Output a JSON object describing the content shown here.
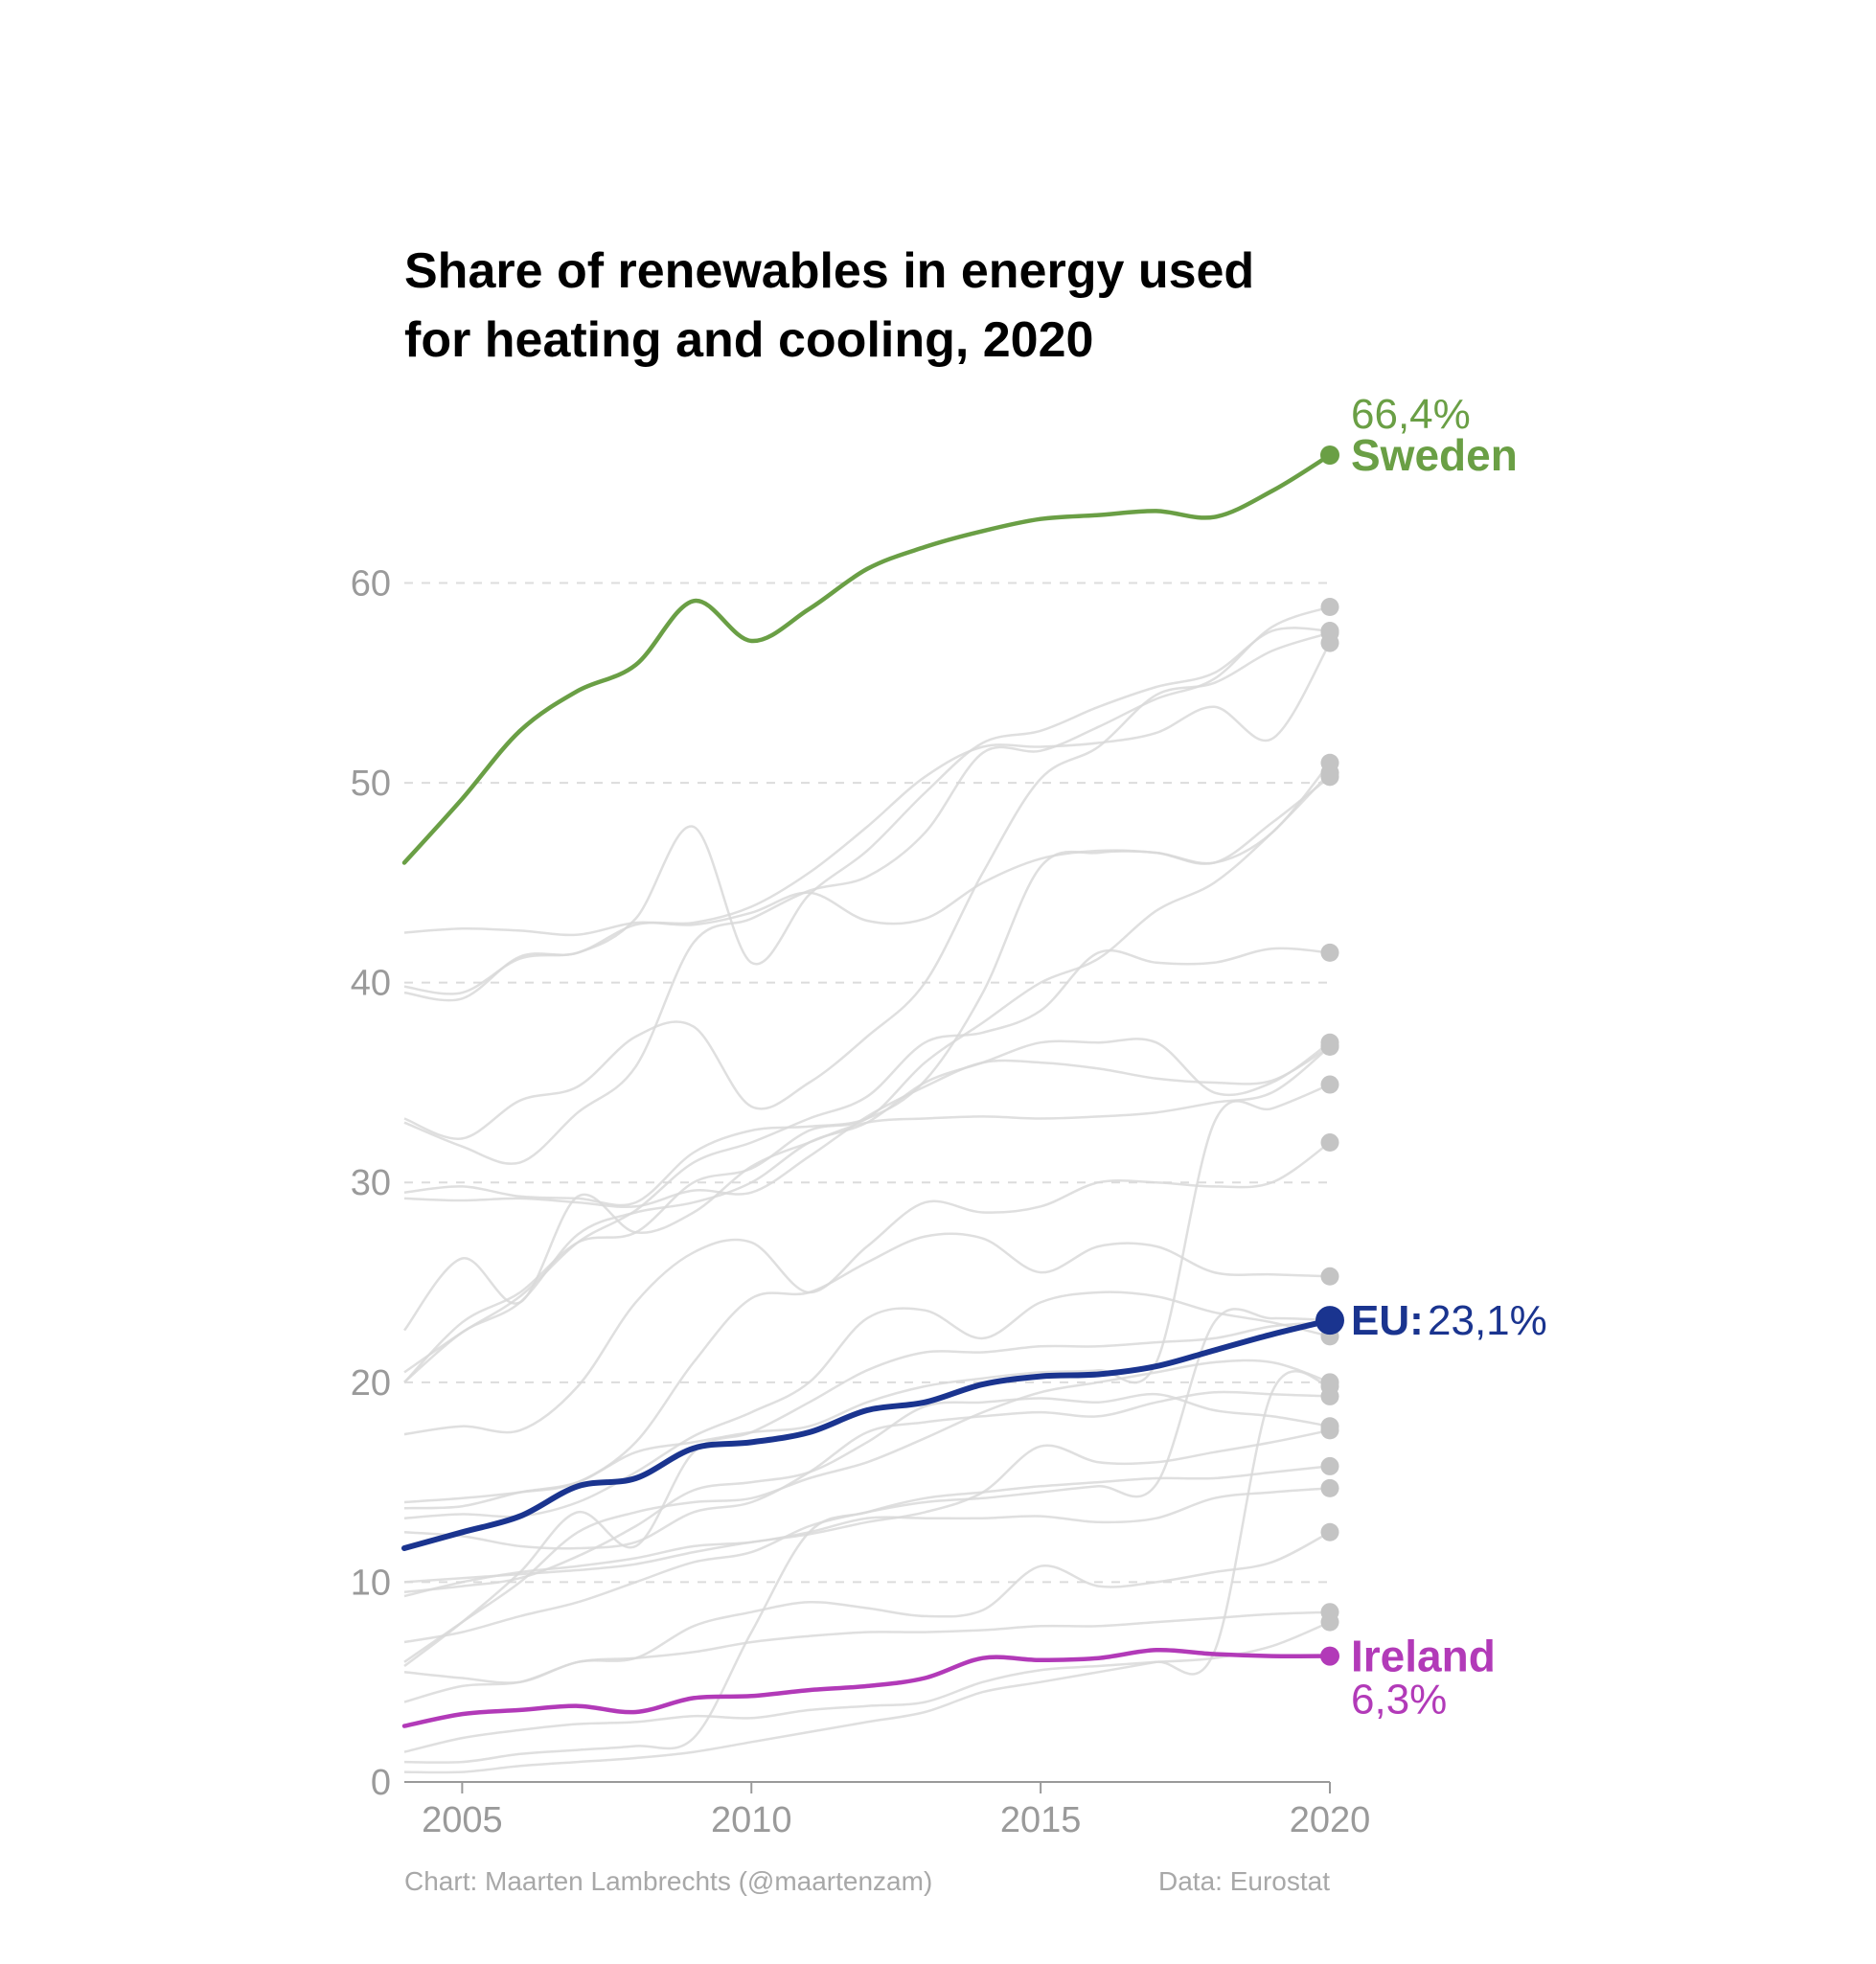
{
  "chart_data": {
    "type": "line",
    "title": [
      "Share of renewables in energy used",
      "for heating and cooling, 2020"
    ],
    "xlabel": "",
    "ylabel": "",
    "xlim": [
      2004,
      2020
    ],
    "ylim": [
      0,
      66.4
    ],
    "x_ticks": [
      "2005",
      "2010",
      "2015",
      "2020"
    ],
    "y_ticks": [
      "0",
      "10",
      "20",
      "30",
      "40",
      "50",
      "60"
    ],
    "grid": "horizontal dashed",
    "x": [
      2004,
      2005,
      2006,
      2007,
      2008,
      2009,
      2010,
      2011,
      2012,
      2013,
      2014,
      2015,
      2016,
      2017,
      2018,
      2019,
      2020
    ],
    "highlight_series": [
      {
        "key": "sweden",
        "name": "Sweden",
        "value_label": "66,4%",
        "color": "#6a9f45",
        "values": [
          46.0,
          49.2,
          52.6,
          54.6,
          55.9,
          59.1,
          57.1,
          58.7,
          60.7,
          61.8,
          62.6,
          63.2,
          63.4,
          63.6,
          63.3,
          64.6,
          66.4
        ]
      },
      {
        "key": "eu",
        "name": "EU:",
        "value_label": "23,1%",
        "color": "#1a348f",
        "values": [
          11.7,
          12.5,
          13.3,
          14.8,
          15.2,
          16.7,
          17.0,
          17.5,
          18.6,
          19.0,
          19.9,
          20.3,
          20.4,
          20.8,
          21.6,
          22.4,
          23.1
        ]
      },
      {
        "key": "ireland",
        "name": "Ireland",
        "value_label": "6,3%",
        "color": "#b23ab8",
        "values": [
          2.8,
          3.4,
          3.6,
          3.8,
          3.5,
          4.2,
          4.3,
          4.6,
          4.8,
          5.2,
          6.2,
          6.1,
          6.2,
          6.6,
          6.4,
          6.3,
          6.3
        ]
      }
    ],
    "background_series": [
      [
        42.5,
        42.7,
        42.6,
        42.4,
        43.0,
        42.9,
        43.5,
        44.5,
        43.1,
        43.2,
        45.0,
        46.2,
        46.6,
        46.5,
        46.0,
        48.0,
        50.3
      ],
      [
        39.5,
        39.2,
        41.3,
        41.5,
        43.2,
        47.8,
        41.0,
        44.4,
        46.6,
        49.5,
        52.0,
        52.6,
        53.8,
        54.8,
        55.5,
        57.6,
        57.6
      ],
      [
        39.8,
        39.5,
        41.2,
        41.5,
        42.9,
        43.0,
        43.8,
        45.5,
        47.8,
        50.3,
        51.8,
        51.8,
        52.0,
        52.5,
        53.8,
        52.2,
        57.0
      ],
      [
        33.2,
        32.2,
        34.1,
        34.8,
        37.3,
        37.8,
        33.8,
        35.0,
        37.3,
        40.0,
        45.5,
        50.2,
        51.8,
        54.4,
        55.0,
        56.6,
        57.5
      ],
      [
        29.5,
        29.8,
        29.3,
        29.2,
        29.0,
        31.5,
        32.6,
        32.8,
        33.2,
        35.1,
        39.5,
        45.8,
        46.5,
        46.5,
        46.0,
        47.5,
        51.0
      ],
      [
        33.0,
        31.8,
        31.0,
        33.5,
        35.8,
        42.0,
        43.2,
        44.6,
        45.3,
        47.5,
        51.5,
        51.6,
        52.8,
        54.2,
        55.2,
        57.8,
        58.8
      ],
      [
        20.5,
        22.5,
        24.3,
        27.0,
        28.6,
        31.0,
        32.0,
        33.2,
        34.3,
        37.0,
        37.5,
        38.6,
        41.5,
        41.0,
        41.0,
        41.7,
        41.5
      ],
      [
        20.0,
        23.0,
        24.5,
        27.0,
        27.5,
        30.0,
        30.7,
        32.6,
        33.2,
        36.0,
        38.0,
        40.0,
        41.2,
        43.6,
        45.0,
        47.5,
        50.5
      ],
      [
        29.2,
        29.1,
        29.2,
        29.0,
        28.8,
        29.6,
        29.5,
        31.3,
        33.3,
        34.8,
        36.0,
        36.0,
        35.7,
        35.2,
        35.0,
        35.1,
        36.8
      ],
      [
        22.6,
        26.2,
        24.0,
        29.3,
        27.5,
        28.5,
        30.8,
        32.0,
        33.0,
        33.2,
        33.3,
        33.2,
        33.3,
        33.5,
        34.0,
        34.5,
        36.8
      ],
      [
        20.0,
        22.5,
        24.0,
        27.4,
        28.5,
        29.0,
        30.0,
        32.0,
        33.0,
        35.0,
        36.0,
        37.0,
        37.0,
        37.0,
        34.5,
        35.0,
        37.0
      ],
      [
        17.4,
        17.8,
        17.6,
        19.8,
        24.0,
        26.5,
        27.0,
        24.5,
        26.8,
        29.0,
        28.5,
        28.8,
        30.0,
        30.0,
        29.8,
        30.0,
        32.0
      ],
      [
        14.0,
        14.2,
        14.5,
        15.0,
        17.0,
        21.0,
        24.2,
        24.5,
        26.0,
        27.3,
        27.2,
        25.5,
        26.8,
        26.8,
        25.5,
        25.4,
        25.3
      ],
      [
        13.7,
        13.8,
        14.5,
        15.0,
        16.5,
        17.0,
        17.5,
        17.8,
        19.0,
        19.8,
        20.2,
        20.5,
        20.6,
        21.0,
        33.0,
        33.7,
        34.9
      ],
      [
        13.2,
        13.4,
        13.3,
        14.0,
        15.5,
        17.3,
        18.5,
        20.0,
        23.2,
        23.6,
        22.2,
        24.0,
        24.5,
        24.3,
        23.5,
        23.0,
        22.3
      ],
      [
        12.5,
        12.3,
        11.8,
        11.7,
        12.0,
        13.5,
        14.0,
        15.5,
        17.5,
        18.0,
        18.3,
        18.5,
        18.3,
        19.0,
        19.5,
        19.4,
        19.3
      ],
      [
        9.5,
        9.8,
        10.2,
        11.3,
        12.8,
        14.6,
        15.0,
        15.5,
        17.0,
        18.8,
        19.0,
        19.2,
        19.0,
        19.4,
        18.6,
        18.3,
        17.8
      ],
      [
        7.0,
        7.5,
        8.3,
        9.0,
        10.0,
        11.0,
        11.5,
        12.8,
        13.5,
        14.0,
        14.2,
        14.5,
        14.8,
        14.9,
        23.0,
        23.2,
        23.1
      ],
      [
        9.3,
        10.0,
        10.5,
        10.8,
        11.2,
        11.8,
        12.0,
        12.5,
        13.2,
        13.2,
        13.2,
        13.3,
        13.0,
        13.2,
        14.2,
        14.5,
        14.7
      ],
      [
        10.0,
        10.2,
        10.4,
        10.6,
        10.9,
        11.5,
        12.0,
        12.4,
        13.0,
        13.5,
        14.5,
        16.8,
        16.0,
        16.0,
        16.5,
        17.0,
        17.6
      ],
      [
        6.0,
        8.0,
        10.0,
        12.5,
        13.5,
        14.0,
        14.2,
        15.2,
        16.0,
        17.2,
        18.5,
        19.5,
        20.0,
        20.5,
        21.0,
        21.0,
        20.0
      ],
      [
        5.8,
        8.0,
        10.5,
        13.5,
        11.8,
        16.5,
        17.5,
        19.0,
        20.6,
        21.5,
        21.5,
        21.8,
        21.8,
        22.0,
        22.2,
        22.8,
        23.0
      ],
      [
        5.5,
        5.2,
        5.0,
        6.0,
        6.2,
        7.8,
        8.5,
        9.0,
        8.7,
        8.3,
        8.6,
        10.8,
        9.8,
        10.0,
        10.5,
        11.0,
        12.5
      ],
      [
        4.0,
        4.8,
        5.0,
        6.0,
        6.2,
        6.5,
        7.0,
        7.3,
        7.5,
        7.5,
        7.6,
        7.8,
        7.8,
        8.0,
        8.2,
        8.4,
        8.5
      ],
      [
        1.0,
        1.0,
        1.4,
        1.6,
        1.8,
        2.2,
        7.5,
        12.5,
        13.5,
        14.2,
        14.5,
        14.8,
        15.0,
        15.2,
        15.2,
        15.5,
        15.8
      ],
      [
        1.5,
        2.2,
        2.6,
        2.9,
        3.0,
        3.3,
        3.2,
        3.6,
        3.8,
        4.0,
        5.0,
        5.6,
        5.8,
        6.0,
        6.2,
        6.8,
        8.0
      ],
      [
        0.5,
        0.5,
        0.8,
        1.0,
        1.2,
        1.5,
        2.0,
        2.5,
        3.0,
        3.5,
        4.5,
        5.0,
        5.5,
        6.0,
        6.5,
        19.5,
        19.8
      ]
    ],
    "credits": {
      "left": "Chart: Maarten Lambrechts (@maartenzam)",
      "right": "Data: Eurostat"
    }
  }
}
